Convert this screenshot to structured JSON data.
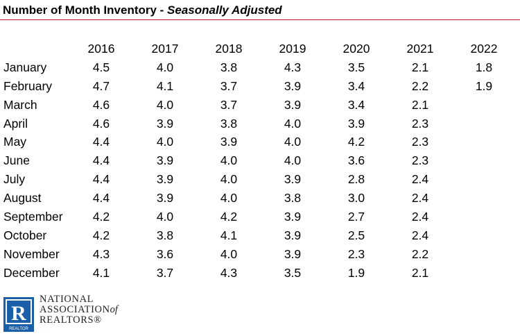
{
  "title": {
    "main": "Number of Month Inventory - ",
    "subtitle": "Seasonally Adjusted"
  },
  "colors": {
    "rule": "#c8102e",
    "logo_blue": "#1b5fa8"
  },
  "table": {
    "years": [
      "2016",
      "2017",
      "2018",
      "2019",
      "2020",
      "2021",
      "2022"
    ],
    "rows": [
      {
        "month": "January",
        "values": [
          "4.5",
          "4.0",
          "3.8",
          "4.3",
          "3.5",
          "2.1",
          "1.8"
        ]
      },
      {
        "month": "February",
        "values": [
          "4.7",
          "4.1",
          "3.7",
          "3.9",
          "3.4",
          "2.2",
          "1.9"
        ]
      },
      {
        "month": "March",
        "values": [
          "4.6",
          "4.0",
          "3.7",
          "3.9",
          "3.4",
          "2.1",
          ""
        ]
      },
      {
        "month": "April",
        "values": [
          "4.6",
          "3.9",
          "3.8",
          "4.0",
          "3.9",
          "2.3",
          ""
        ]
      },
      {
        "month": "May",
        "values": [
          "4.4",
          "4.0",
          "3.9",
          "4.0",
          "4.2",
          "2.3",
          ""
        ]
      },
      {
        "month": "June",
        "values": [
          "4.4",
          "3.9",
          "4.0",
          "4.0",
          "3.6",
          "2.3",
          ""
        ]
      },
      {
        "month": "July",
        "values": [
          "4.4",
          "3.9",
          "4.0",
          "3.9",
          "2.8",
          "2.4",
          ""
        ]
      },
      {
        "month": "August",
        "values": [
          "4.4",
          "3.9",
          "4.0",
          "3.8",
          "3.0",
          "2.4",
          ""
        ]
      },
      {
        "month": "September",
        "values": [
          "4.2",
          "4.0",
          "4.2",
          "3.9",
          "2.7",
          "2.4",
          ""
        ]
      },
      {
        "month": "October",
        "values": [
          "4.2",
          "3.8",
          "4.1",
          "3.9",
          "2.5",
          "2.4",
          ""
        ]
      },
      {
        "month": "November",
        "values": [
          "4.3",
          "3.6",
          "4.0",
          "3.9",
          "2.3",
          "2.2",
          ""
        ]
      },
      {
        "month": "December",
        "values": [
          "4.1",
          "3.7",
          "4.3",
          "3.5",
          "1.9",
          "2.1",
          ""
        ]
      }
    ]
  },
  "logo": {
    "icon": "realtor-r-logo",
    "mark_letter": "R",
    "mark_caption": "REALTOR",
    "line1": "NATIONAL",
    "line2": "ASSOCIATION",
    "line2_of": "of",
    "line3": "REALTORS®"
  }
}
